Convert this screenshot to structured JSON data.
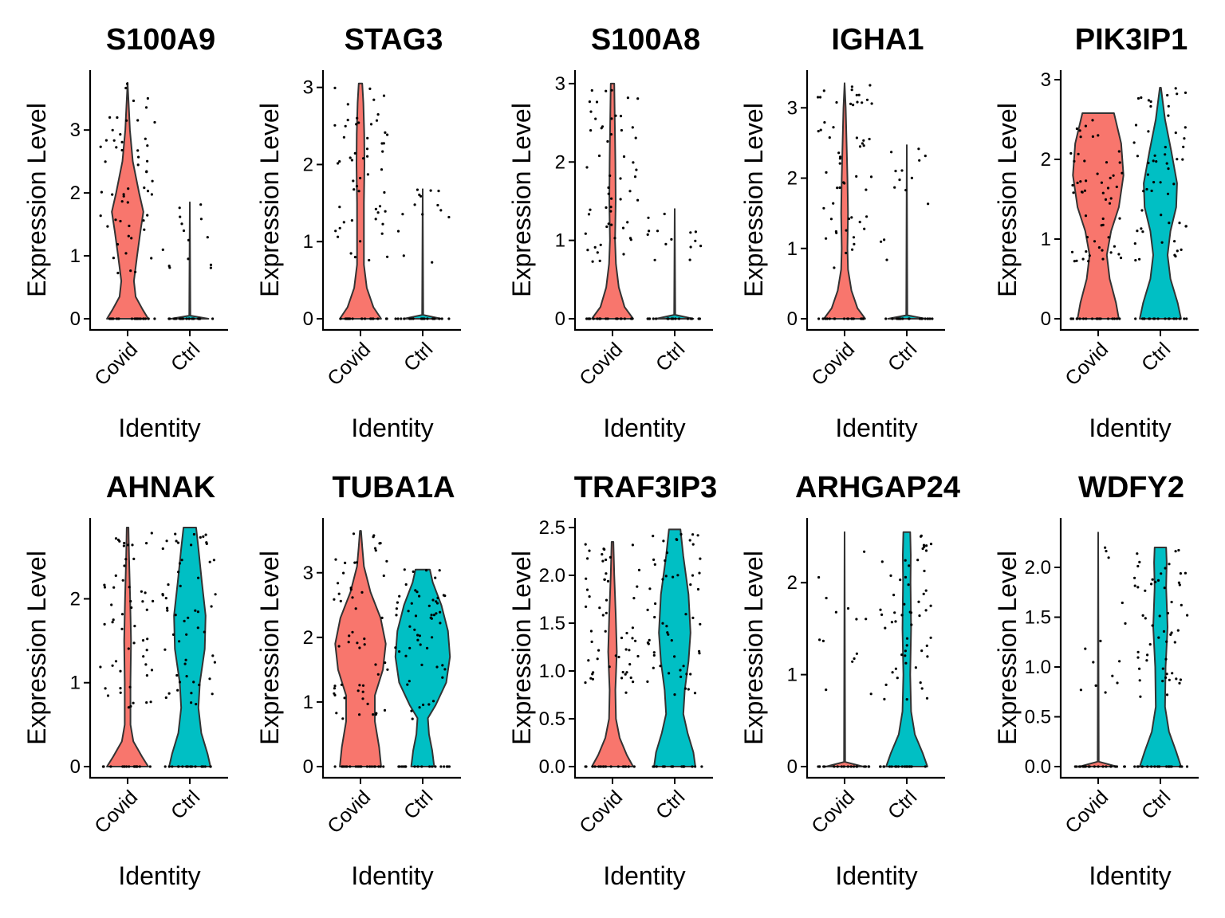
{
  "chart_data": [
    {
      "type": "violin",
      "title": "S100A9",
      "ylabel": "Expression Level",
      "xlabel": "Identity",
      "categories": [
        "Covid",
        "Ctrl"
      ],
      "ylim": [
        0,
        3.8
      ],
      "yticks": [
        0,
        1,
        2,
        3
      ],
      "fills": [
        "#F8766D",
        "#00BFC4"
      ],
      "series": [
        {
          "name": "Covid",
          "max": 3.75,
          "body": [
            [
              0,
              0.72
            ],
            [
              0.15,
              0.52
            ],
            [
              0.35,
              0.28
            ],
            [
              0.6,
              0.22
            ],
            [
              1.0,
              0.33
            ],
            [
              1.4,
              0.45
            ],
            [
              1.7,
              0.55
            ],
            [
              2.0,
              0.4
            ],
            [
              2.5,
              0.18
            ],
            [
              3.0,
              0.08
            ],
            [
              3.4,
              0.04
            ],
            [
              3.75,
              0.0
            ]
          ]
        },
        {
          "name": "Ctrl",
          "max": 1.85,
          "body": [
            [
              0,
              0.65
            ],
            [
              0.05,
              0.02
            ],
            [
              1.85,
              0.0
            ]
          ]
        }
      ]
    },
    {
      "type": "violin",
      "title": "STAG3",
      "ylabel": "Expression Level",
      "xlabel": "Identity",
      "categories": [
        "Covid",
        "Ctrl"
      ],
      "ylim": [
        0,
        3.1
      ],
      "yticks": [
        0,
        1,
        2,
        3
      ],
      "fills": [
        "#F8766D",
        "#00BFC4"
      ],
      "series": [
        {
          "name": "Covid",
          "max": 3.05,
          "body": [
            [
              0,
              0.72
            ],
            [
              0.15,
              0.45
            ],
            [
              0.4,
              0.22
            ],
            [
              0.7,
              0.12
            ],
            [
              1.0,
              0.12
            ],
            [
              1.5,
              0.12
            ],
            [
              2.0,
              0.14
            ],
            [
              2.4,
              0.13
            ],
            [
              2.8,
              0.1
            ],
            [
              3.05,
              0.06
            ]
          ]
        },
        {
          "name": "Ctrl",
          "max": 1.68,
          "body": [
            [
              0,
              0.65
            ],
            [
              0.05,
              0.02
            ],
            [
              1.68,
              0.0
            ]
          ]
        }
      ]
    },
    {
      "type": "violin",
      "title": "S100A8",
      "ylabel": "Expression Level",
      "xlabel": "Identity",
      "categories": [
        "Covid",
        "Ctrl"
      ],
      "ylim": [
        0,
        3.05
      ],
      "yticks": [
        0,
        1,
        2,
        3
      ],
      "fills": [
        "#F8766D",
        "#00BFC4"
      ],
      "series": [
        {
          "name": "Covid",
          "max": 3.0,
          "body": [
            [
              0,
              0.72
            ],
            [
              0.15,
              0.42
            ],
            [
              0.4,
              0.22
            ],
            [
              0.7,
              0.12
            ],
            [
              1.0,
              0.09
            ],
            [
              1.5,
              0.11
            ],
            [
              2.0,
              0.1
            ],
            [
              2.5,
              0.08
            ],
            [
              3.0,
              0.06
            ]
          ]
        },
        {
          "name": "Ctrl",
          "max": 1.4,
          "body": [
            [
              0,
              0.65
            ],
            [
              0.05,
              0.02
            ],
            [
              1.4,
              0.0
            ]
          ]
        }
      ]
    },
    {
      "type": "violin",
      "title": "IGHA1",
      "ylabel": "Expression Level",
      "xlabel": "Identity",
      "categories": [
        "Covid",
        "Ctrl"
      ],
      "ylim": [
        0,
        3.4
      ],
      "yticks": [
        0,
        1,
        2,
        3
      ],
      "fills": [
        "#F8766D",
        "#00BFC4"
      ],
      "series": [
        {
          "name": "Covid",
          "max": 3.35,
          "body": [
            [
              0,
              0.72
            ],
            [
              0.15,
              0.45
            ],
            [
              0.4,
              0.24
            ],
            [
              0.7,
              0.12
            ],
            [
              1.0,
              0.1
            ],
            [
              1.5,
              0.12
            ],
            [
              2.0,
              0.1
            ],
            [
              2.5,
              0.07
            ],
            [
              3.0,
              0.04
            ],
            [
              3.35,
              0.0
            ]
          ]
        },
        {
          "name": "Ctrl",
          "max": 2.47,
          "body": [
            [
              0,
              0.65
            ],
            [
              0.05,
              0.02
            ],
            [
              2.47,
              0.0
            ]
          ]
        }
      ]
    },
    {
      "type": "violin",
      "title": "PIK3IP1",
      "ylabel": "Expression Level",
      "xlabel": "Identity",
      "categories": [
        "Covid",
        "Ctrl"
      ],
      "ylim": [
        0,
        3.0
      ],
      "yticks": [
        0,
        1,
        2,
        3
      ],
      "fills": [
        "#F8766D",
        "#00BFC4"
      ],
      "series": [
        {
          "name": "Covid",
          "max": 2.58,
          "body": [
            [
              0,
              0.72
            ],
            [
              0.2,
              0.62
            ],
            [
              0.5,
              0.4
            ],
            [
              0.8,
              0.3
            ],
            [
              1.1,
              0.45
            ],
            [
              1.4,
              0.72
            ],
            [
              1.8,
              0.88
            ],
            [
              2.2,
              0.8
            ],
            [
              2.58,
              0.55
            ]
          ]
        },
        {
          "name": "Ctrl",
          "max": 2.9,
          "body": [
            [
              0,
              0.72
            ],
            [
              0.2,
              0.6
            ],
            [
              0.5,
              0.35
            ],
            [
              0.8,
              0.25
            ],
            [
              1.1,
              0.35
            ],
            [
              1.4,
              0.55
            ],
            [
              1.7,
              0.58
            ],
            [
              2.1,
              0.38
            ],
            [
              2.5,
              0.16
            ],
            [
              2.9,
              0.02
            ]
          ]
        }
      ]
    },
    {
      "type": "violin",
      "title": "AHNAK",
      "ylabel": "Expression Level",
      "xlabel": "Identity",
      "categories": [
        "Covid",
        "Ctrl"
      ],
      "ylim": [
        0,
        2.85
      ],
      "yticks": [
        0,
        1,
        2
      ],
      "fills": [
        "#F8766D",
        "#00BFC4"
      ],
      "series": [
        {
          "name": "Covid",
          "max": 2.85,
          "body": [
            [
              0,
              0.72
            ],
            [
              0.12,
              0.5
            ],
            [
              0.3,
              0.2
            ],
            [
              0.5,
              0.1
            ],
            [
              1.0,
              0.1
            ],
            [
              1.5,
              0.12
            ],
            [
              2.0,
              0.09
            ],
            [
              2.5,
              0.05
            ],
            [
              2.85,
              0.03
            ]
          ]
        },
        {
          "name": "Ctrl",
          "max": 2.85,
          "body": [
            [
              0,
              0.72
            ],
            [
              0.15,
              0.62
            ],
            [
              0.4,
              0.4
            ],
            [
              0.7,
              0.3
            ],
            [
              1.0,
              0.35
            ],
            [
              1.4,
              0.52
            ],
            [
              1.8,
              0.55
            ],
            [
              2.2,
              0.42
            ],
            [
              2.6,
              0.3
            ],
            [
              2.85,
              0.22
            ]
          ]
        }
      ]
    },
    {
      "type": "violin",
      "title": "TUBA1A",
      "ylabel": "Expression Level",
      "xlabel": "Identity",
      "categories": [
        "Covid",
        "Ctrl"
      ],
      "ylim": [
        0,
        3.7
      ],
      "yticks": [
        0,
        1,
        2,
        3
      ],
      "fills": [
        "#F8766D",
        "#00BFC4"
      ],
      "series": [
        {
          "name": "Covid",
          "max": 3.65,
          "body": [
            [
              0,
              0.72
            ],
            [
              0.3,
              0.65
            ],
            [
              0.7,
              0.5
            ],
            [
              1.1,
              0.5
            ],
            [
              1.5,
              0.78
            ],
            [
              1.9,
              0.88
            ],
            [
              2.3,
              0.7
            ],
            [
              2.7,
              0.35
            ],
            [
              3.1,
              0.12
            ],
            [
              3.4,
              0.06
            ],
            [
              3.65,
              0.02
            ]
          ]
        },
        {
          "name": "Ctrl",
          "max": 3.05,
          "body": [
            [
              0,
              0.4
            ],
            [
              0.25,
              0.33
            ],
            [
              0.5,
              0.22
            ],
            [
              0.75,
              0.18
            ],
            [
              0.95,
              0.45
            ],
            [
              1.3,
              0.82
            ],
            [
              1.7,
              0.95
            ],
            [
              2.1,
              0.88
            ],
            [
              2.5,
              0.65
            ],
            [
              2.85,
              0.35
            ],
            [
              3.05,
              0.25
            ]
          ]
        }
      ]
    },
    {
      "type": "violin",
      "title": "TRAF3IP3",
      "ylabel": "Expression Level",
      "xlabel": "Identity",
      "categories": [
        "Covid",
        "Ctrl"
      ],
      "ylim": [
        0,
        2.5
      ],
      "yticks": [
        0,
        0.5,
        1,
        1.5,
        2,
        2.5
      ],
      "tickLabels": [
        "0.0",
        "0.5",
        "1.0",
        "1.5",
        "2.0",
        "2.5"
      ],
      "fills": [
        "#F8766D",
        "#00BFC4"
      ],
      "series": [
        {
          "name": "Covid",
          "max": 2.35,
          "body": [
            [
              0,
              0.72
            ],
            [
              0.12,
              0.5
            ],
            [
              0.3,
              0.25
            ],
            [
              0.5,
              0.12
            ],
            [
              0.8,
              0.1
            ],
            [
              1.2,
              0.15
            ],
            [
              1.6,
              0.11
            ],
            [
              2.0,
              0.06
            ],
            [
              2.35,
              0.03
            ]
          ]
        },
        {
          "name": "Ctrl",
          "max": 2.48,
          "body": [
            [
              0,
              0.72
            ],
            [
              0.15,
              0.65
            ],
            [
              0.35,
              0.45
            ],
            [
              0.55,
              0.3
            ],
            [
              0.8,
              0.35
            ],
            [
              1.1,
              0.48
            ],
            [
              1.4,
              0.55
            ],
            [
              1.8,
              0.48
            ],
            [
              2.2,
              0.3
            ],
            [
              2.48,
              0.2
            ]
          ]
        }
      ]
    },
    {
      "type": "violin",
      "title": "ARHGAP24",
      "ylabel": "Expression Level",
      "xlabel": "Identity",
      "categories": [
        "Covid",
        "Ctrl"
      ],
      "ylim": [
        0,
        2.6
      ],
      "yticks": [
        0,
        1,
        2
      ],
      "fills": [
        "#F8766D",
        "#00BFC4"
      ],
      "series": [
        {
          "name": "Covid",
          "max": 2.55,
          "body": [
            [
              0,
              0.65
            ],
            [
              0.05,
              0.02
            ],
            [
              2.55,
              0.0
            ]
          ]
        },
        {
          "name": "Ctrl",
          "max": 2.55,
          "body": [
            [
              0,
              0.72
            ],
            [
              0.15,
              0.55
            ],
            [
              0.35,
              0.28
            ],
            [
              0.6,
              0.15
            ],
            [
              1.0,
              0.12
            ],
            [
              1.5,
              0.15
            ],
            [
              2.0,
              0.13
            ],
            [
              2.3,
              0.14
            ],
            [
              2.55,
              0.12
            ]
          ]
        }
      ]
    },
    {
      "type": "violin",
      "title": "WDFY2",
      "ylabel": "Expression Level",
      "xlabel": "Identity",
      "categories": [
        "Covid",
        "Ctrl"
      ],
      "ylim": [
        0,
        2.4
      ],
      "yticks": [
        0,
        0.5,
        1,
        1.5,
        2
      ],
      "tickLabels": [
        "0.0",
        "0.5",
        "1.0",
        "1.5",
        "2.0"
      ],
      "fills": [
        "#F8766D",
        "#00BFC4"
      ],
      "series": [
        {
          "name": "Covid",
          "max": 2.35,
          "body": [
            [
              0,
              0.65
            ],
            [
              0.05,
              0.02
            ],
            [
              2.35,
              0.0
            ]
          ]
        },
        {
          "name": "Ctrl",
          "max": 2.2,
          "body": [
            [
              0,
              0.72
            ],
            [
              0.15,
              0.55
            ],
            [
              0.35,
              0.3
            ],
            [
              0.6,
              0.16
            ],
            [
              1.0,
              0.18
            ],
            [
              1.4,
              0.25
            ],
            [
              1.8,
              0.2
            ],
            [
              2.05,
              0.22
            ],
            [
              2.2,
              0.2
            ]
          ]
        }
      ]
    }
  ]
}
